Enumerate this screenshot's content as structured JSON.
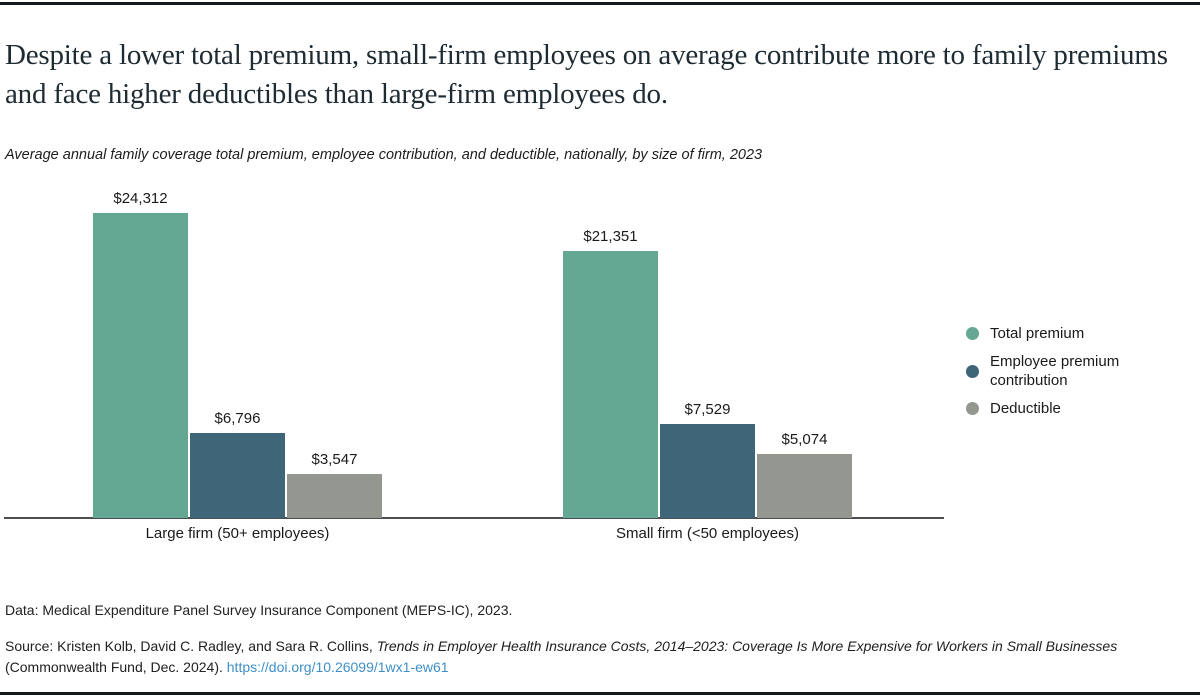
{
  "header": {
    "title": "Despite a lower total premium, small-firm employees on average contribute more to family premiums and face higher deductibles than large-firm employees do.",
    "subtitle": "Average annual family coverage total premium, employee contribution, and deductible, nationally, by size of firm, 2023"
  },
  "chart_data": {
    "type": "bar",
    "title": "Average annual family coverage total premium, employee contribution, and deductible, nationally, by size of firm, 2023",
    "categories": [
      "Large firm (50+ employees)",
      "Small firm (<50 employees)"
    ],
    "series": [
      {
        "name": "Total premium",
        "color": "#64a793",
        "values": [
          24312,
          21351
        ],
        "value_labels": [
          "$24,312",
          "$21,351"
        ]
      },
      {
        "name": "Employee premium contribution",
        "color": "#3f6678",
        "values": [
          6796,
          7529
        ],
        "value_labels": [
          "$6,796",
          "$7,529"
        ]
      },
      {
        "name": "Deductible",
        "color": "#939790",
        "values": [
          3547,
          5074
        ],
        "value_labels": [
          "$3,547",
          "$5,074"
        ]
      }
    ],
    "ylim": [
      0,
      24312
    ],
    "grid": false,
    "legend_position": "right",
    "xlabel": "",
    "ylabel": ""
  },
  "footer": {
    "data_note": "Data: Medical Expenditure Panel Survey Insurance Component (MEPS-IC), 2023.",
    "source_prefix": "Source: Kristen Kolb, David C. Radley, and Sara R. Collins, ",
    "source_title": "Trends in Employer Health Insurance Costs, 2014–2023: Coverage Is More Expensive for Workers in Small Businesses",
    "source_suffix": " (Commonwealth Fund, Dec. 2024). ",
    "source_link": "https://doi.org/10.26099/1wx1-ew61"
  },
  "colors": {
    "accent_border": "#13181d",
    "axis_line": "#4d4e50",
    "link": "#3f8fc6",
    "title_text": "#1e2b33",
    "body_text": "#212121"
  }
}
